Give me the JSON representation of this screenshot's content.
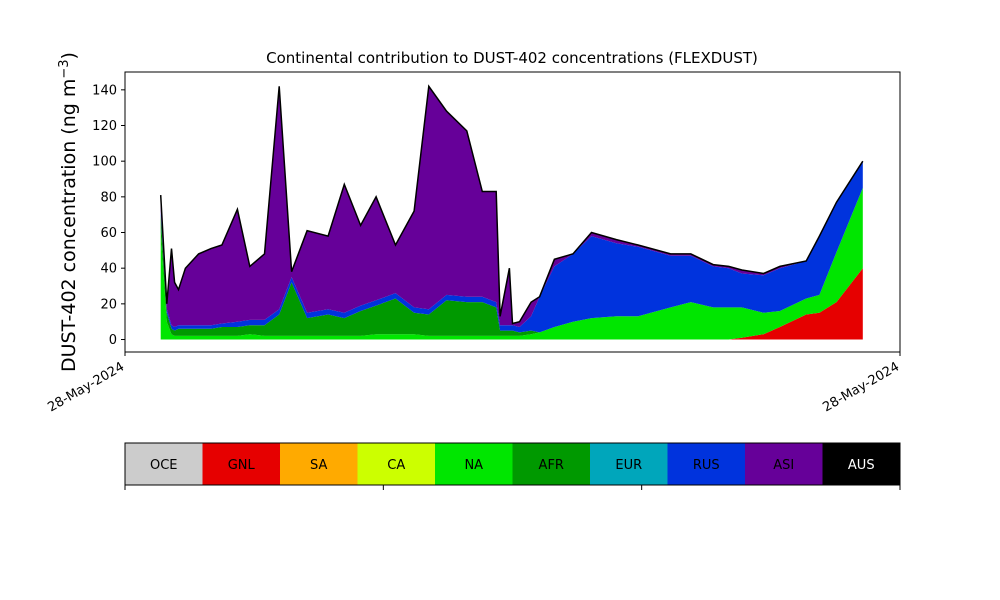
{
  "chart_data": {
    "type": "area",
    "stacked": true,
    "title": "Continental contribution to DUST-402 concentrations (FLEXDUST)",
    "ylabel_main": "DUST-402 concentration (ng m",
    "ylabel_sup": "−3",
    "ylabel_end": ")",
    "xlabel": "",
    "ylim": [
      -7,
      150
    ],
    "yticks": [
      0,
      20,
      40,
      60,
      80,
      100,
      120,
      140
    ],
    "xlim": [
      0,
      1
    ],
    "xtick_labels": [
      "28-May-2024",
      "28-May-2024"
    ],
    "grid": false,
    "x": [
      0.046,
      0.054,
      0.06,
      0.064,
      0.069,
      0.078,
      0.095,
      0.111,
      0.125,
      0.145,
      0.161,
      0.18,
      0.199,
      0.215,
      0.235,
      0.262,
      0.283,
      0.304,
      0.324,
      0.349,
      0.373,
      0.392,
      0.415,
      0.441,
      0.461,
      0.479,
      0.484,
      0.496,
      0.5,
      0.509,
      0.524,
      0.535,
      0.554,
      0.578,
      0.602,
      0.634,
      0.662,
      0.704,
      0.73,
      0.759,
      0.779,
      0.796,
      0.824,
      0.845,
      0.879,
      0.896,
      0.918,
      0.952
    ],
    "series": [
      {
        "name": "GNL",
        "color": "#e60000",
        "values": [
          0,
          0,
          0,
          0,
          0,
          0,
          0,
          0,
          0,
          0,
          0,
          0,
          0,
          0,
          0,
          0,
          0,
          0,
          0,
          0,
          0,
          0,
          0,
          0,
          0,
          0,
          0,
          0,
          0,
          0,
          0,
          0,
          0,
          0,
          0,
          0,
          0,
          0,
          0,
          0,
          0,
          1,
          3,
          7,
          14,
          15,
          21,
          40
        ]
      },
      {
        "name": "NA",
        "color": "#00e600",
        "values": [
          60,
          10,
          3,
          2,
          2,
          2,
          2,
          2,
          2,
          2,
          3,
          2,
          2,
          2,
          2,
          2,
          2,
          2,
          3,
          3,
          3,
          2,
          2,
          2,
          2,
          2,
          2,
          2,
          2,
          2,
          3,
          4,
          7,
          10,
          12,
          13,
          13,
          18,
          21,
          18,
          18,
          17,
          12,
          9,
          9,
          10,
          28,
          45
        ]
      },
      {
        "name": "AFR",
        "color": "#009900",
        "values": [
          10,
          5,
          3,
          3,
          4,
          4,
          4,
          4,
          5,
          5,
          5,
          6,
          12,
          30,
          10,
          12,
          10,
          14,
          16,
          20,
          12,
          12,
          20,
          19,
          19,
          16,
          3,
          3,
          3,
          2,
          2,
          0,
          0,
          0,
          0,
          0,
          0,
          0,
          0,
          0,
          0,
          0,
          0,
          0,
          0,
          0,
          0,
          0
        ]
      },
      {
        "name": "RUS",
        "color": "#0033dd",
        "values": [
          2,
          2,
          2,
          2,
          2,
          2,
          2,
          2,
          2,
          3,
          3,
          3,
          3,
          3,
          3,
          3,
          3,
          3,
          3,
          3,
          3,
          3,
          3,
          3,
          3,
          3,
          3,
          3,
          3,
          3,
          8,
          20,
          34,
          38,
          46,
          41,
          39,
          29,
          26,
          23,
          22,
          19,
          21,
          24,
          21,
          33,
          28,
          15
        ]
      },
      {
        "name": "ASI",
        "color": "#660099",
        "values": [
          9,
          3,
          43,
          25,
          20,
          32,
          40,
          43,
          44,
          63,
          30,
          37,
          125,
          3,
          46,
          41,
          72,
          45,
          58,
          27,
          54,
          125,
          103,
          93,
          59,
          62,
          5,
          32,
          1,
          3,
          8,
          0,
          4,
          0,
          2,
          2,
          1,
          1,
          1,
          1,
          1,
          2,
          1,
          1,
          0,
          0,
          0,
          0
        ]
      }
    ],
    "total_line_color": "#000000",
    "colorbar": {
      "labels": [
        "OCE",
        "GNL",
        "SA",
        "CA",
        "NA",
        "AFR",
        "EUR",
        "RUS",
        "ASI",
        "AUS"
      ],
      "colors": [
        "#cccccc",
        "#e60000",
        "#ffaa00",
        "#ccff00",
        "#00e600",
        "#009900",
        "#00a6bb",
        "#0033dd",
        "#660099",
        "#000000"
      ],
      "label_colors": [
        "#000000",
        "#000000",
        "#000000",
        "#000000",
        "#000000",
        "#000000",
        "#000000",
        "#000000",
        "#000000",
        "#ffffff"
      ]
    }
  }
}
